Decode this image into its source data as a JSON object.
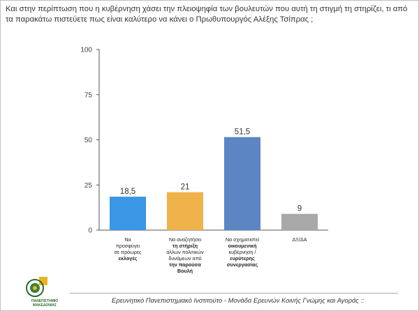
{
  "question": "Και στην περίπτωση που η κυβέρνηση χάσει την πλειοψηφία των βουλευτών που αυτή τη στιγμή τη στηρίζει, τι από τα παρακάτω πιστεύετε πως είναι καλύτερο να κάνει ο Πρωθυπουργός Αλέξης Τσίπρας ;",
  "footer": "Ερευνητικό Πανεπιστημιακό Ινστιτούτο - Μονάδα Ερευνών Κοινής Γνώμης και Αγοράς ::",
  "logo": {
    "name": "university-seal",
    "text_line1": "ΠΑΝΕΠΙΣΤΗΜΙΟ",
    "text_line2": "ΜΑΚΕΔΟΝΙΑΣ"
  },
  "colors": {
    "bar1": "#3b96e6",
    "bar2": "#f0b24b",
    "bar3": "#5c85c4",
    "bar4": "#a8a8a8",
    "axis": "#555555",
    "grid": "#cfcfcf"
  },
  "chart_data": {
    "type": "bar",
    "title": "",
    "xlabel": "",
    "ylabel": "",
    "ylim": [
      0,
      100
    ],
    "yticks": [
      0,
      25,
      50,
      75,
      100
    ],
    "grid": false,
    "values": [
      18.5,
      21,
      51.5,
      9
    ],
    "value_labels": [
      "18,5",
      "21",
      "51,5",
      "9"
    ],
    "categories": [
      [
        {
          "text": "Να",
          "bold": false
        },
        {
          "text": "προσφύγει",
          "bold": false
        },
        {
          "text": "σε πρόωρες",
          "bold": false
        },
        {
          "text": "εκλογές",
          "bold": true
        }
      ],
      [
        {
          "text": "Να αναζητήσει",
          "bold": false
        },
        {
          "text": "τη στήριξη",
          "bold": true
        },
        {
          "text": "άλλων πολιτικών",
          "bold": false
        },
        {
          "text": "δυνάμεων από",
          "bold": false
        },
        {
          "text": "την παρούσα",
          "bold": true
        },
        {
          "text": "Βουλή",
          "bold": true
        }
      ],
      [
        {
          "text": "Να σχηματιστεί",
          "bold": false
        },
        {
          "text": "οικουμενική",
          "bold": true
        },
        {
          "text": "κυβέρνηση /",
          "bold": false
        },
        {
          "text": "ευρύτερης",
          "bold": true
        },
        {
          "text": "συνεργασίας",
          "bold": true
        }
      ],
      [
        {
          "text": "ΔΞ/ΔΑ",
          "bold": false
        }
      ]
    ]
  }
}
